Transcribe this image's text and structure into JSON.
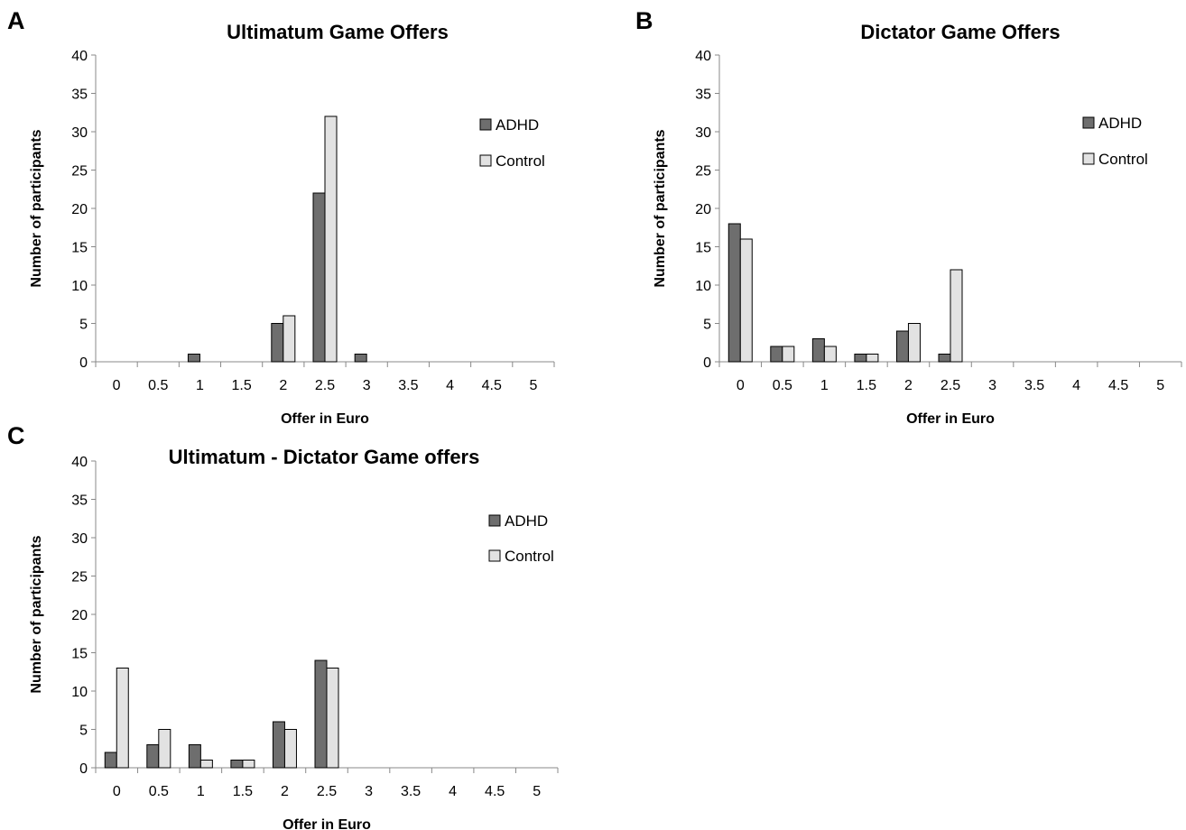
{
  "colors": {
    "ADHD": "#6e6e6e",
    "Control": "#e2e2e2"
  },
  "chart_data": [
    {
      "panel": "A",
      "type": "bar",
      "title": "Ultimatum Game Offers",
      "xlabel": "Offer in Euro",
      "ylabel": "Number of participants",
      "categories": [
        "0",
        "0.5",
        "1",
        "1.5",
        "2",
        "2.5",
        "3",
        "3.5",
        "4",
        "4.5",
        "5"
      ],
      "ylim": [
        0,
        40
      ],
      "yticks": [
        "0",
        "5",
        "10",
        "15",
        "20",
        "25",
        "30",
        "35",
        "40"
      ],
      "legend_position": "right",
      "series": [
        {
          "name": "ADHD",
          "values": [
            0,
            0,
            1,
            0,
            5,
            22,
            1,
            0,
            0,
            0,
            0
          ]
        },
        {
          "name": "Control",
          "values": [
            0,
            0,
            0,
            0,
            6,
            32,
            0,
            0,
            0,
            0,
            0
          ]
        }
      ]
    },
    {
      "panel": "B",
      "type": "bar",
      "title": "Dictator Game Offers",
      "xlabel": "Offer in Euro",
      "ylabel": "Number of participants",
      "categories": [
        "0",
        "0.5",
        "1",
        "1.5",
        "2",
        "2.5",
        "3",
        "3.5",
        "4",
        "4.5",
        "5"
      ],
      "ylim": [
        0,
        40
      ],
      "yticks": [
        "0",
        "5",
        "10",
        "15",
        "20",
        "25",
        "30",
        "35",
        "40"
      ],
      "legend_position": "right",
      "series": [
        {
          "name": "ADHD",
          "values": [
            18,
            2,
            3,
            1,
            4,
            1,
            0,
            0,
            0,
            0,
            0
          ]
        },
        {
          "name": "Control",
          "values": [
            16,
            2,
            2,
            1,
            5,
            12,
            0,
            0,
            0,
            0,
            0
          ]
        }
      ]
    },
    {
      "panel": "C",
      "type": "bar",
      "title": "Ultimatum - Dictator Game offers",
      "xlabel": "Offer in Euro",
      "ylabel": "Number of participants",
      "categories": [
        "0",
        "0.5",
        "1",
        "1.5",
        "2",
        "2.5",
        "3",
        "3.5",
        "4",
        "4.5",
        "5"
      ],
      "ylim": [
        0,
        40
      ],
      "yticks": [
        "0",
        "5",
        "10",
        "15",
        "20",
        "25",
        "30",
        "35",
        "40"
      ],
      "legend_position": "right",
      "series": [
        {
          "name": "ADHD",
          "values": [
            2,
            3,
            3,
            1,
            6,
            14,
            0,
            0,
            0,
            0,
            0
          ]
        },
        {
          "name": "Control",
          "values": [
            13,
            5,
            1,
            1,
            5,
            13,
            0,
            0,
            0,
            0,
            0
          ]
        }
      ]
    }
  ]
}
